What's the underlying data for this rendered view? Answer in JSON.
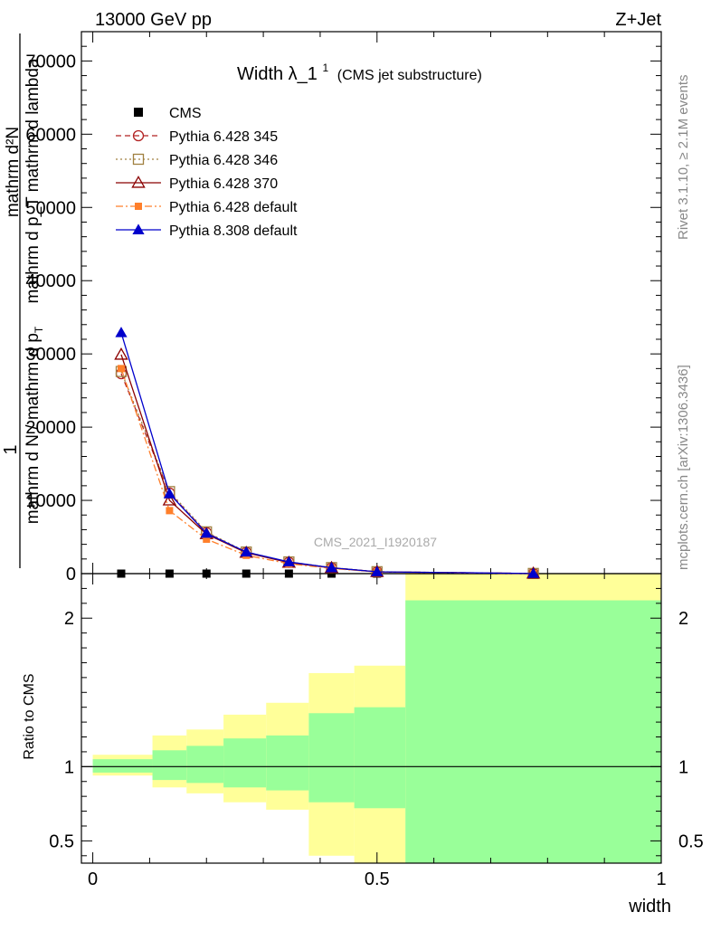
{
  "header": {
    "energy_label": "13000 GeV pp",
    "process_label": "Z+Jet"
  },
  "side_text": {
    "rivet": "Rivet 3.1.10, ≥ 2.1M events",
    "mcplots": "mcplots.cern.ch [arXiv:1306.3436]"
  },
  "chart_data": [
    {
      "type": "line",
      "panel": "main",
      "title": "Width λ_1",
      "title_sup": "1",
      "subtitle": "(CMS jet substructure)",
      "watermark": "CMS_2021_I1920187",
      "ylabel": {
        "prefix": "1",
        "fraction_numerator": "mathrm d²N",
        "fraction_denominator": "mathrm d p_T mathrm d lambda",
        "inner_fraction": "mathrm d N / mathrm d p",
        "inner_subscript": "T"
      },
      "ylim": [
        0,
        74000
      ],
      "xlim": [
        -0.02,
        1.0
      ],
      "y_ticks": [
        0,
        10000,
        20000,
        30000,
        40000,
        50000,
        60000,
        70000
      ],
      "y_tick_labels": [
        "0",
        "10000",
        "20000",
        "30000",
        "40000",
        "50000",
        "60000",
        "70000"
      ],
      "legend_position": "top-left",
      "series": [
        {
          "name": "CMS",
          "color": "#000000",
          "marker": "filled-square",
          "x": [
            0.05,
            0.135,
            0.2,
            0.27,
            0.345,
            0.42,
            0.5,
            0.775
          ],
          "y": [
            0,
            0,
            0,
            0,
            0,
            0,
            0,
            0
          ]
        },
        {
          "name": "Pythia 6.428 345",
          "color": "#b22222",
          "marker": "open-circle",
          "line": "dashed",
          "x": [
            0.05,
            0.135,
            0.2,
            0.27,
            0.345,
            0.42,
            0.5,
            0.775
          ],
          "y": [
            27300,
            11000,
            5600,
            2900,
            1550,
            800,
            250,
            20
          ]
        },
        {
          "name": "Pythia 6.428 346",
          "color": "#a08040",
          "marker": "open-square",
          "line": "dotted",
          "x": [
            0.05,
            0.135,
            0.2,
            0.27,
            0.345,
            0.42,
            0.5,
            0.775
          ],
          "y": [
            27600,
            11200,
            5700,
            2950,
            1600,
            820,
            260,
            20
          ]
        },
        {
          "name": "Pythia 6.428 370",
          "color": "#8b0000",
          "marker": "open-triangle",
          "line": "solid",
          "x": [
            0.05,
            0.135,
            0.2,
            0.27,
            0.345,
            0.42,
            0.5,
            0.775
          ],
          "y": [
            29900,
            10000,
            5400,
            2850,
            1500,
            780,
            240,
            20
          ]
        },
        {
          "name": "Pythia 6.428 default",
          "color": "#ff7f2a",
          "marker": "filled-square",
          "line": "dashdot",
          "x": [
            0.05,
            0.135,
            0.2,
            0.27,
            0.345,
            0.42,
            0.5,
            0.775
          ],
          "y": [
            28000,
            8600,
            4700,
            2500,
            1350,
            700,
            220,
            20
          ]
        },
        {
          "name": "Pythia 8.308 default",
          "color": "#0000cc",
          "marker": "filled-triangle",
          "line": "solid",
          "x": [
            0.05,
            0.135,
            0.2,
            0.27,
            0.345,
            0.42,
            0.5,
            0.775
          ],
          "y": [
            32900,
            10900,
            5500,
            2950,
            1600,
            800,
            250,
            20
          ]
        }
      ]
    },
    {
      "type": "area",
      "panel": "ratio",
      "ylabel": "Ratio to CMS",
      "xlabel": "width",
      "ylim": [
        0.35,
        2.3
      ],
      "xlim": [
        -0.02,
        1.0
      ],
      "y_ticks": [
        0.5,
        1,
        2
      ],
      "y_tick_labels": [
        "0.5",
        "1",
        "2"
      ],
      "x_ticks": [
        0,
        0.5,
        1
      ],
      "x_tick_labels": [
        "0",
        "0.5",
        "1"
      ],
      "reference_line": 1,
      "bins": [
        {
          "x_lo": 0.0,
          "x_hi": 0.105,
          "stat_lo": 0.96,
          "stat_hi": 1.05,
          "tot_lo": 0.94,
          "tot_hi": 1.08
        },
        {
          "x_lo": 0.105,
          "x_hi": 0.165,
          "stat_lo": 0.91,
          "stat_hi": 1.11,
          "tot_lo": 0.86,
          "tot_hi": 1.21
        },
        {
          "x_lo": 0.165,
          "x_hi": 0.23,
          "stat_lo": 0.89,
          "stat_hi": 1.14,
          "tot_lo": 0.82,
          "tot_hi": 1.25
        },
        {
          "x_lo": 0.23,
          "x_hi": 0.305,
          "stat_lo": 0.86,
          "stat_hi": 1.19,
          "tot_lo": 0.76,
          "tot_hi": 1.35
        },
        {
          "x_lo": 0.305,
          "x_hi": 0.38,
          "stat_lo": 0.84,
          "stat_hi": 1.21,
          "tot_lo": 0.71,
          "tot_hi": 1.43
        },
        {
          "x_lo": 0.38,
          "x_hi": 0.46,
          "stat_lo": 0.76,
          "stat_hi": 1.36,
          "tot_lo": 0.4,
          "tot_hi": 1.63
        },
        {
          "x_lo": 0.46,
          "x_hi": 0.55,
          "stat_lo": 0.72,
          "stat_hi": 1.4,
          "tot_lo": 0.35,
          "tot_hi": 1.68
        },
        {
          "x_lo": 0.55,
          "x_hi": 1.0,
          "stat_lo": 0.35,
          "stat_hi": 2.12,
          "tot_lo": 0.35,
          "tot_hi": 2.3
        }
      ],
      "stat_color": "#99ff99",
      "total_color": "#ffff99"
    }
  ]
}
